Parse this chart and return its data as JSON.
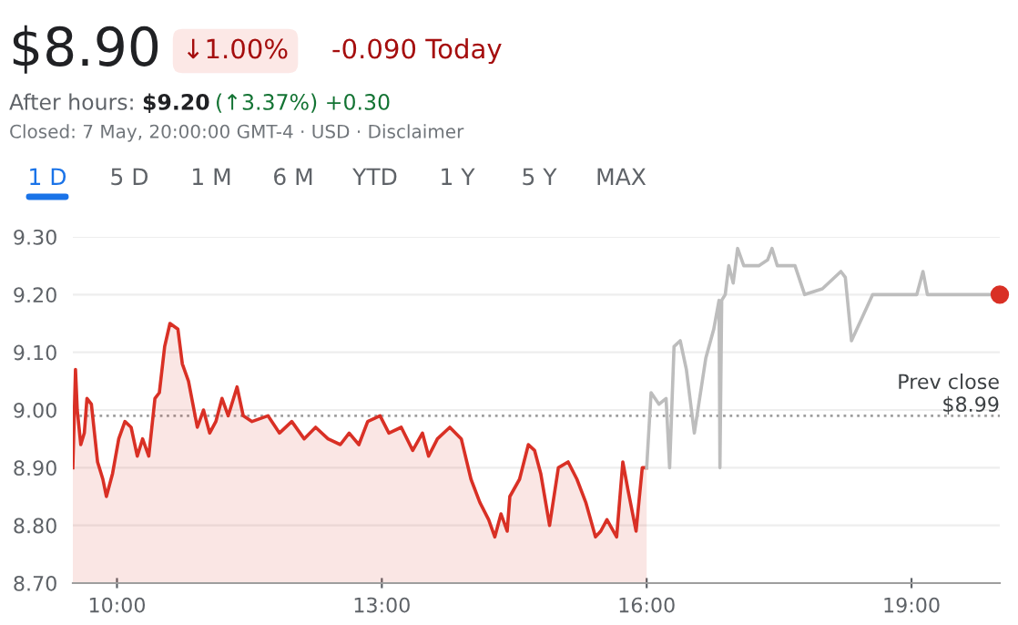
{
  "chart_data": {
    "type": "line",
    "title": "$8.90",
    "annotations": [
      "↓1.00%",
      "-0.090 Today",
      "After hours:",
      "$9.20",
      "(↑3.37%) +0.30",
      "Closed: 7 May, 20:00:00 GMT-4 · USD · Disclaimer",
      "1 D",
      "5 D",
      "1 M",
      "6 M",
      "YTD",
      "1 Y",
      "5 Y",
      "MAX"
    ],
    "series": [
      {
        "type": "area",
        "marker": "none",
        "color": "#d93025",
        "x": [
          9.5,
          9.53,
          9.55,
          9.59,
          9.63,
          9.66,
          9.71,
          9.78,
          9.84,
          9.88,
          9.95,
          10.02,
          10.09,
          10.16,
          10.23,
          10.29,
          10.36,
          10.43,
          10.48,
          10.54,
          10.6,
          10.69,
          10.74,
          10.81,
          10.91,
          10.98,
          11.05,
          11.12,
          11.19,
          11.26,
          11.36,
          11.43,
          11.53,
          11.71,
          11.84,
          11.98,
          12.12,
          12.25,
          12.39,
          12.53,
          12.63,
          12.74,
          12.84,
          12.98,
          13.08,
          13.22,
          13.35,
          13.46,
          13.53,
          13.63,
          13.77,
          13.9,
          14.01,
          14.11,
          14.21,
          14.28,
          14.35,
          14.42,
          14.45,
          14.56,
          14.66,
          14.73,
          14.8,
          14.9,
          15.0,
          15.11,
          15.21,
          15.31,
          15.42,
          15.48,
          15.55,
          15.66,
          15.73,
          15.79,
          15.88,
          15.95,
          16.0
        ],
        "values": [
          8.9,
          9.07,
          9.0,
          8.94,
          8.96,
          9.02,
          9.01,
          8.91,
          8.88,
          8.85,
          8.89,
          8.95,
          8.98,
          8.97,
          8.92,
          8.95,
          8.92,
          9.02,
          9.03,
          9.11,
          9.15,
          9.14,
          9.08,
          9.05,
          8.97,
          9.0,
          8.96,
          8.98,
          9.02,
          8.99,
          9.04,
          8.99,
          8.98,
          8.99,
          8.96,
          8.98,
          8.95,
          8.97,
          8.95,
          8.94,
          8.96,
          8.94,
          8.98,
          8.99,
          8.96,
          8.97,
          8.93,
          8.96,
          8.92,
          8.95,
          8.97,
          8.95,
          8.88,
          8.84,
          8.81,
          8.78,
          8.82,
          8.79,
          8.85,
          8.88,
          8.94,
          8.93,
          8.89,
          8.8,
          8.9,
          8.91,
          8.88,
          8.84,
          8.78,
          8.79,
          8.81,
          8.78,
          8.91,
          8.86,
          8.79,
          8.9,
          8.9
        ]
      },
      {
        "marker": "none",
        "color": "#bdbdbd",
        "x": [
          16.0,
          16.05,
          16.14,
          16.22,
          16.26,
          16.31,
          16.38,
          16.45,
          16.54,
          16.62,
          16.67,
          16.76,
          16.82,
          16.83,
          16.85,
          16.89,
          16.93,
          16.98,
          17.03,
          17.1,
          17.27,
          17.37,
          17.42,
          17.48,
          17.68,
          17.79,
          17.99,
          18.2,
          18.25,
          18.32,
          18.44,
          18.56,
          19.06,
          19.13,
          19.18,
          20.0
        ],
        "values": [
          8.9,
          9.03,
          9.01,
          9.02,
          8.9,
          9.11,
          9.12,
          9.07,
          8.96,
          9.04,
          9.09,
          9.14,
          9.19,
          8.9,
          9.19,
          9.2,
          9.25,
          9.22,
          9.28,
          9.25,
          9.25,
          9.26,
          9.28,
          9.25,
          9.25,
          9.2,
          9.21,
          9.24,
          9.23,
          9.12,
          9.16,
          9.2,
          9.2,
          9.24,
          9.2,
          9.2
        ]
      },
      {
        "type": "scatter",
        "marker": "circle",
        "color": "#d93025",
        "x": [
          20.0
        ],
        "values": [
          9.2
        ]
      }
    ],
    "line_style": "solid",
    "xlim": [
      9.5,
      20.0
    ],
    "xticks": [
      {
        "value": 10,
        "label": "10:00"
      },
      {
        "value": 13,
        "label": "13:00"
      },
      {
        "value": 16,
        "label": "16:00"
      },
      {
        "value": 19,
        "label": "19:00"
      }
    ],
    "ylim": [
      8.7,
      9.3
    ],
    "yticks": [
      {
        "value": 8.7,
        "label": "8.70"
      },
      {
        "value": 8.8,
        "label": "8.80"
      },
      {
        "value": 8.9,
        "label": "8.90"
      },
      {
        "value": 9.0,
        "label": "9.00"
      },
      {
        "value": 9.1,
        "label": "9.10"
      },
      {
        "value": 9.2,
        "label": "9.20"
      },
      {
        "value": 9.3,
        "label": "9.30"
      }
    ],
    "grid": "y",
    "ref_lines": [
      {
        "axis": "y",
        "value": 8.99,
        "label": "Prev close\n$8.99",
        "color": "#9e9e9e",
        "line_style": "dotted"
      }
    ]
  }
}
